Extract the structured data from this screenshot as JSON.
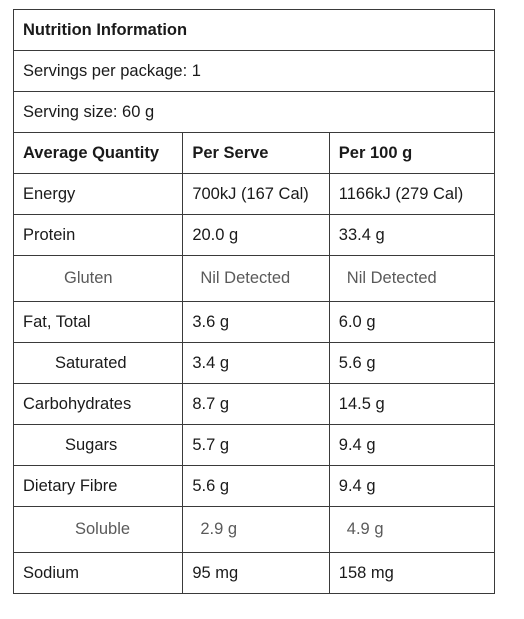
{
  "title": "Nutrition Information",
  "servings_per_package": "Servings per package: 1",
  "serving_size": "Serving size: 60 g",
  "header": {
    "col1": "Average Quantity",
    "col2": "Per Serve",
    "col3": "Per 100 g"
  },
  "rows": [
    {
      "name": "Energy",
      "per_serve": "700kJ (167 Cal)",
      "per_100g": "1166kJ (279 Cal)"
    },
    {
      "name": "Protein",
      "per_serve": "20.0 g",
      "per_100g": "33.4 g"
    },
    {
      "name": "Gluten",
      "per_serve": "Nil Detected",
      "per_100g": "Nil Detected"
    },
    {
      "name": "Fat, Total",
      "per_serve": "3.6 g",
      "per_100g": "6.0 g"
    },
    {
      "name": "Saturated",
      "per_serve": "3.4 g",
      "per_100g": "5.6 g"
    },
    {
      "name": "Carbohydrates",
      "per_serve": "8.7 g",
      "per_100g": "14.5 g"
    },
    {
      "name": "Sugars",
      "per_serve": "5.7 g",
      "per_100g": "9.4 g"
    },
    {
      "name": "Dietary Fibre",
      "per_serve": "5.6 g",
      "per_100g": "9.4 g"
    },
    {
      "name": "Soluble",
      "per_serve": "2.9 g",
      "per_100g": "4.9 g"
    },
    {
      "name": "Sodium",
      "per_serve": "95 mg",
      "per_100g": "158 mg"
    }
  ]
}
